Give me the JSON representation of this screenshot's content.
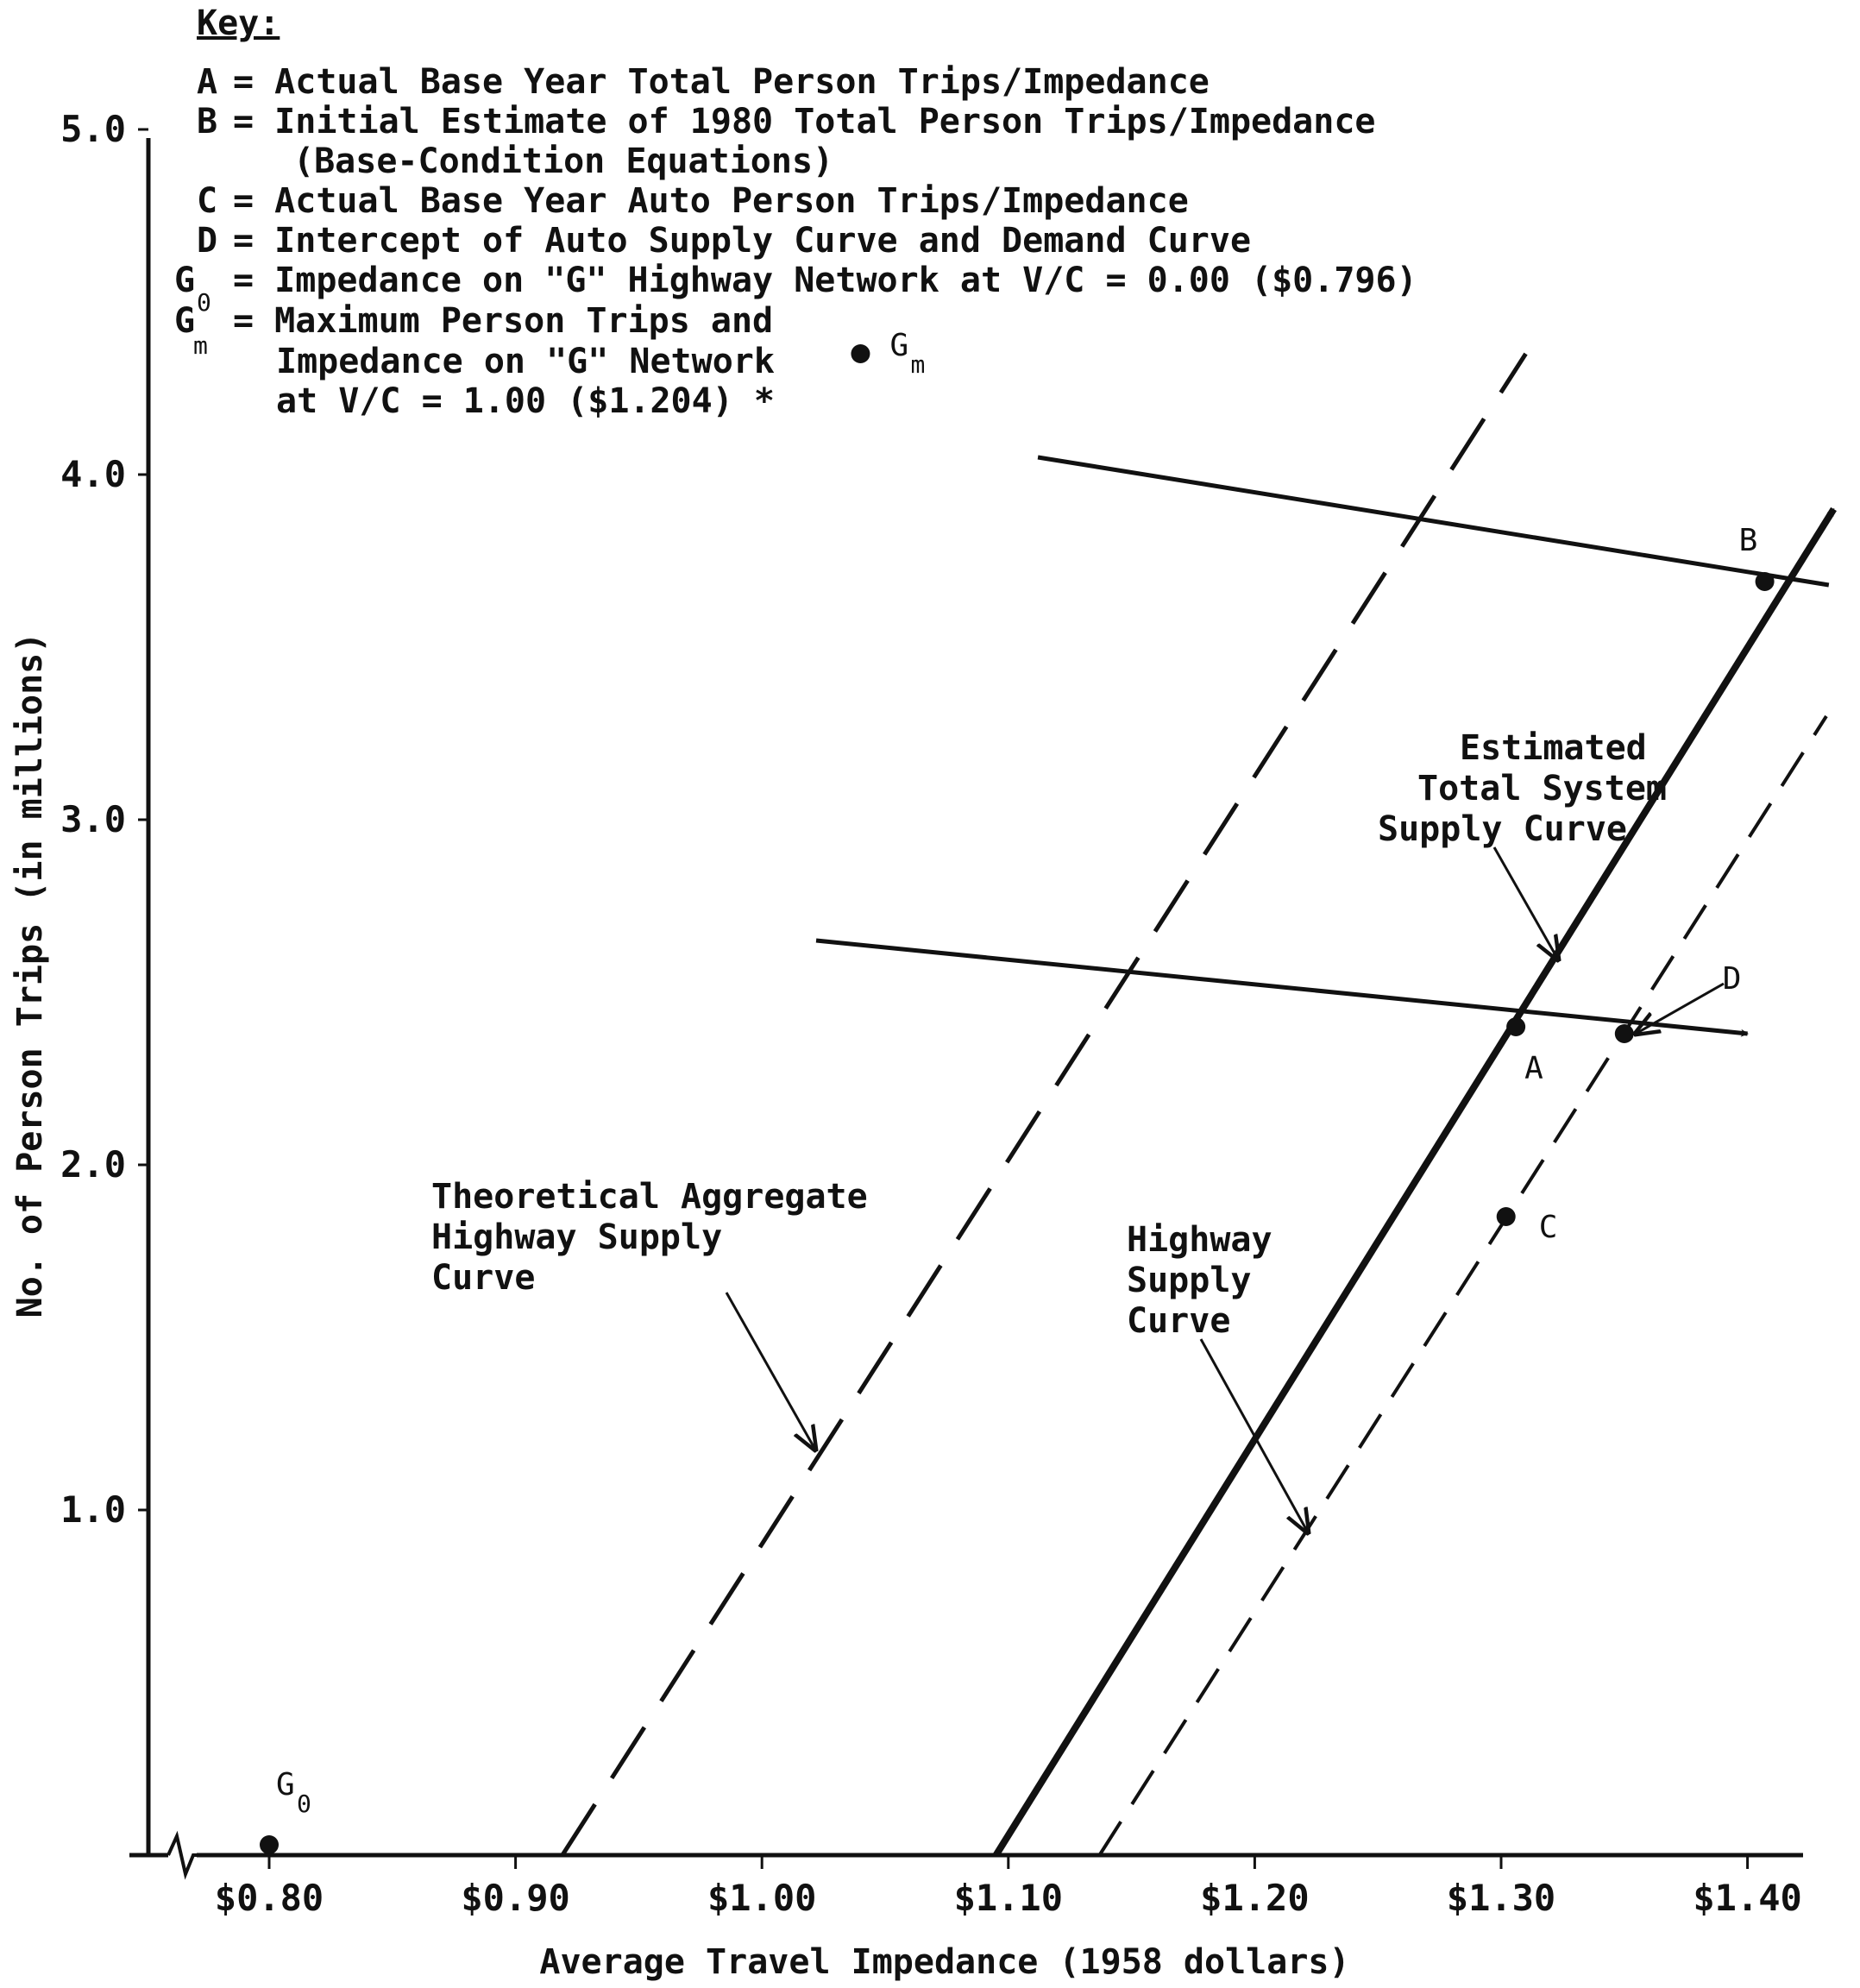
{
  "chart_data": {
    "type": "line",
    "title": "",
    "xlabel": "Average Travel Impedance (1958 dollars)",
    "ylabel": "No. of Person Trips (in millions)",
    "xlim": [
      0.77,
      1.42
    ],
    "ylim": [
      0,
      5.0
    ],
    "x_ticks": [
      0.8,
      0.9,
      1.0,
      1.1,
      1.2,
      1.3,
      1.4
    ],
    "x_tick_labels": [
      "$0.80",
      "$0.90",
      "$1.00",
      "$1.10",
      "$1.20",
      "$1.30",
      "$1.40"
    ],
    "y_ticks": [
      1.0,
      2.0,
      3.0,
      4.0,
      5.0
    ],
    "y_tick_labels": [
      "1.0",
      "2.0",
      "3.0",
      "4.0",
      "5.0"
    ],
    "grid": false,
    "key": {
      "heading": "Key:",
      "entries": [
        {
          "symbol": "A",
          "sub": "",
          "text": "= Actual Base Year Total Person Trips/Impedance"
        },
        {
          "symbol": "B",
          "sub": "",
          "text": "= Initial Estimate of 1980 Total Person Trips/Impedance",
          "continuation": "(Base-Condition Equations)"
        },
        {
          "symbol": "C",
          "sub": "",
          "text": "= Actual Base Year Auto Person Trips/Impedance"
        },
        {
          "symbol": "D",
          "sub": "",
          "text": "= Intercept of Auto Supply Curve and Demand Curve"
        },
        {
          "symbol": "G",
          "sub": "0",
          "text": "= Impedance on \"G\" Highway Network at V/C = 0.00 ($0.796)"
        },
        {
          "symbol": "G",
          "sub": "m",
          "text": "= Maximum Person Trips and",
          "continuation": "Impedance on \"G\" Network",
          "continuation2": "at V/C = 1.00 ($1.204)  *"
        }
      ]
    },
    "series": [
      {
        "style": "dashed-long",
        "x": [
          0.919,
          1.31
        ],
        "y": [
          0.0,
          4.35
        ]
      },
      {
        "style": "solid-arrow",
        "x": [
          1.095,
          1.435
        ],
        "y": [
          0.0,
          3.9
        ]
      },
      {
        "style": "dashed",
        "x": [
          1.137,
          1.432
        ],
        "y": [
          0.0,
          3.3
        ]
      },
      {
        "style": "solid",
        "x": [
          1.112,
          1.433
        ],
        "y": [
          4.05,
          3.68
        ]
      },
      {
        "style": "solid-arrow",
        "x": [
          1.022,
          1.4
        ],
        "y": [
          2.65,
          2.38
        ]
      }
    ],
    "points": [
      {
        "label": "A",
        "x": 1.306,
        "y": 2.4
      },
      {
        "label": "B",
        "x": 1.407,
        "y": 3.69
      },
      {
        "label": "C",
        "x": 1.302,
        "y": 1.85
      },
      {
        "label": "D",
        "x": 1.35,
        "y": 2.38
      },
      {
        "label": "G",
        "sub": "0",
        "x": 0.8,
        "y": 0.03
      },
      {
        "label": "G",
        "sub": "m",
        "x": 1.04,
        "y": 4.35
      }
    ],
    "annotations": [
      {
        "lines": [
          "Theoretical Aggregate",
          "Highway Supply",
          "Curve"
        ],
        "points_to": [
          1.02,
          1.2
        ]
      },
      {
        "lines": [
          "Highway",
          "Supply",
          "Curve"
        ],
        "points_to": [
          1.22,
          0.98
        ]
      },
      {
        "lines": [
          "Estimated",
          "Total System",
          "Supply Curve"
        ],
        "points_to": [
          1.315,
          2.6
        ]
      }
    ]
  }
}
